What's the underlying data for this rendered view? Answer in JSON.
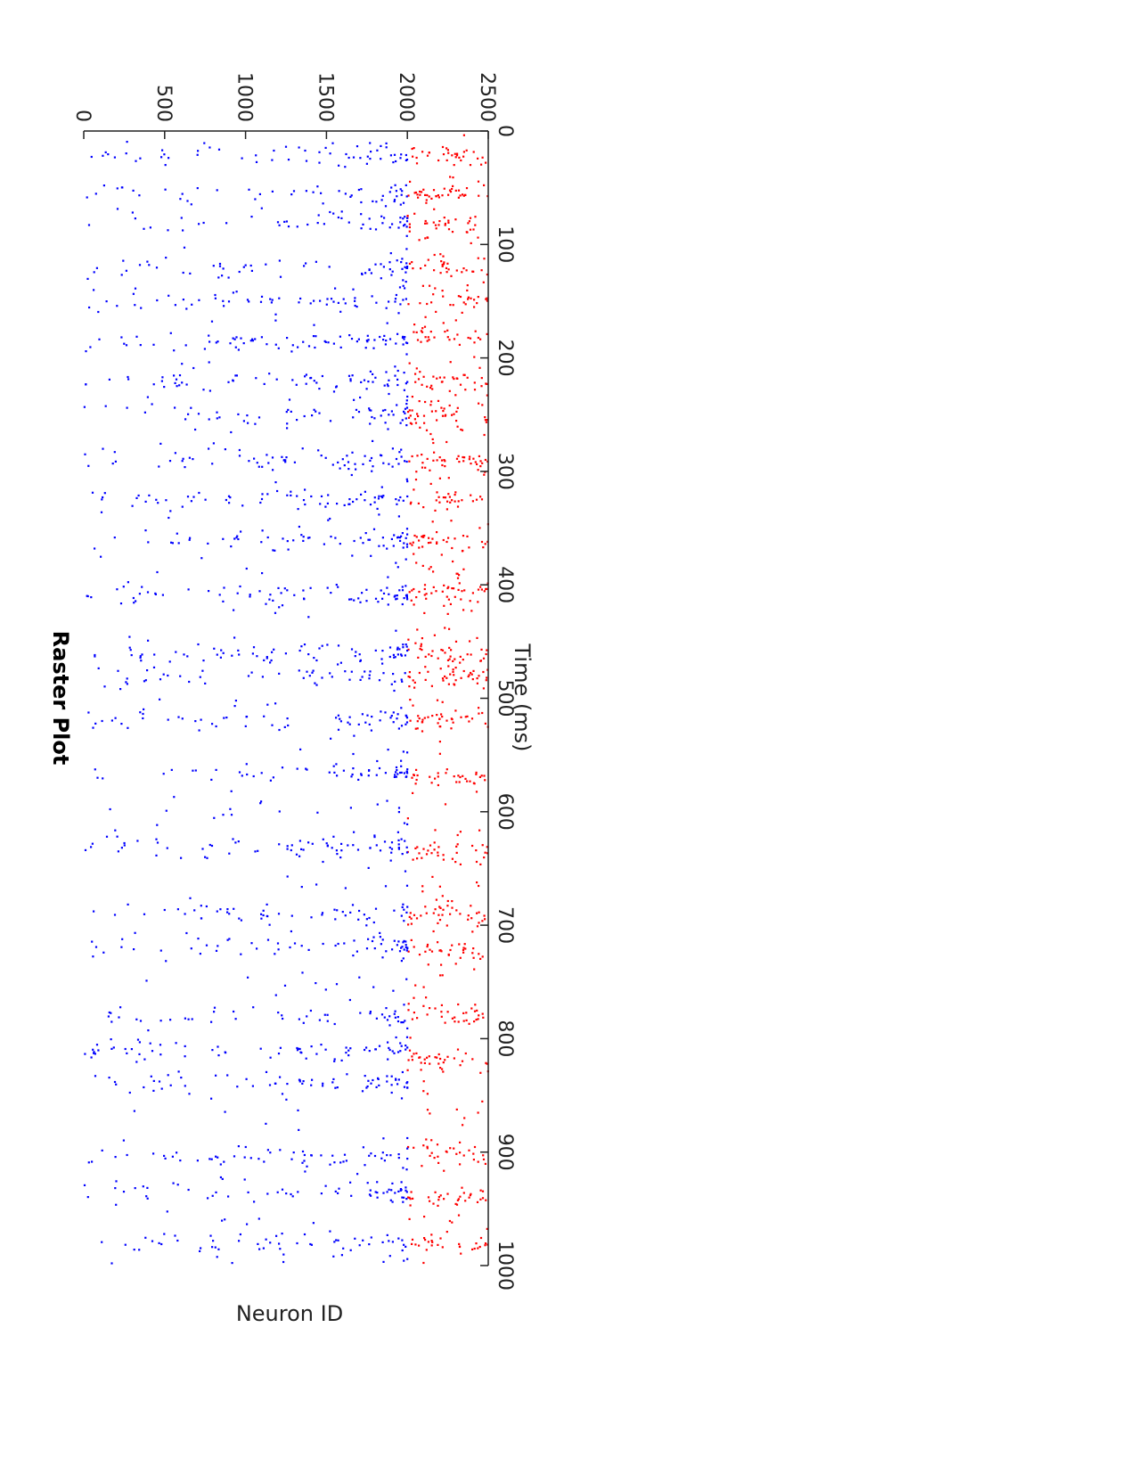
{
  "chart_data": {
    "type": "scatter",
    "title": "Raster Plot",
    "xlabel": "Time (ms)",
    "ylabel": "Neuron ID",
    "xlim": [
      0,
      1000
    ],
    "ylim": [
      0,
      2500
    ],
    "xticks": [
      0,
      100,
      200,
      300,
      400,
      500,
      600,
      700,
      800,
      900,
      1000
    ],
    "yticks": [
      0,
      500,
      1000,
      1500,
      2000,
      2500
    ],
    "orientation": "rotated 90 degrees (landscape figure on portrait page)",
    "grid": false,
    "legend": "none",
    "series": [
      {
        "color": "#ff0000",
        "neuron_id_range": [
          2000,
          2500
        ],
        "burst_times": [
          20,
          55,
          80,
          120,
          150,
          180,
          220,
          250,
          290,
          325,
          360,
          405,
          460,
          480,
          520,
          570,
          635,
          690,
          720,
          780,
          820,
          900,
          940,
          980
        ],
        "background_rate_hz": 2.4
      },
      {
        "color": "#0000ff",
        "neuron_id_range": [
          0,
          2000
        ],
        "burst_times": [
          20,
          55,
          80,
          120,
          150,
          185,
          220,
          250,
          290,
          325,
          360,
          410,
          460,
          480,
          520,
          565,
          630,
          690,
          720,
          780,
          810,
          840,
          905,
          935,
          980
        ],
        "background_rate_hz": 0.25
      }
    ]
  }
}
